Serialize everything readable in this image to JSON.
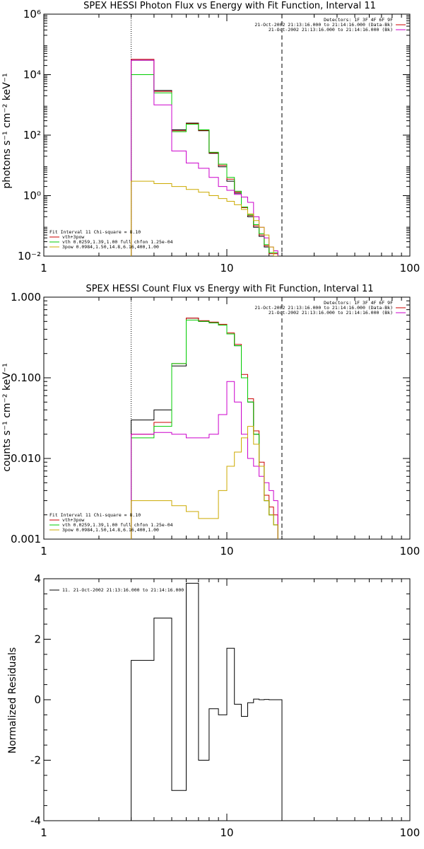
{
  "chart_data": [
    {
      "type": "line",
      "title": "SPEX HESSI Photon Flux vs Energy with Fit Function, Interval 11",
      "ylabel": "photons s⁻¹ cm⁻² keV⁻¹",
      "xlabel": "",
      "xscale": "log",
      "yscale": "log",
      "xlim": [
        1,
        100
      ],
      "ylim": [
        0.01,
        1000000
      ],
      "x_ticks": [
        1,
        10,
        100
      ],
      "x_tick_labels": [
        "1",
        "10",
        "100"
      ],
      "y_ticks": [
        0.01,
        1,
        100,
        10000,
        1000000
      ],
      "y_tick_labels": [
        "10⁻²",
        "10⁰",
        "10²",
        "10⁴",
        "10⁶"
      ],
      "vlines": [
        {
          "x": 3,
          "style": "dotted"
        },
        {
          "x": 20,
          "style": "dashed"
        }
      ],
      "legend_top_right": [
        {
          "text": "Detectors: 1F 3F 4F 6F 9F",
          "color": ""
        },
        {
          "text": "21-Oct-2002 21:13:16.000 to 21:14:16.000 (Data-Bk)",
          "color": "#cc0000"
        },
        {
          "text": "21-Oct-2002 21:13:16.000 to 21:14:16.000 (Bk)",
          "color": "#cc00cc"
        }
      ],
      "legend_bottom_left": [
        {
          "text": "Fit Interval 11    Chi-square = 8.10",
          "color": ""
        },
        {
          "text": "vth+3pow",
          "color": "#cc0000"
        },
        {
          "text": "vth 0.0259,1.39,1.00  full chfon 1.25e-04",
          "color": "#00cc00"
        },
        {
          "text": "3pow 0.0984,1.50,14.8,6.16,400,1.00",
          "color": "#ccaa00"
        }
      ],
      "edges": [
        3,
        4,
        5,
        6,
        7,
        8,
        9,
        10,
        11,
        12,
        13,
        14,
        15,
        16,
        17,
        18,
        19,
        20,
        21,
        22
      ],
      "series": [
        {
          "color": "#000000",
          "values": [
            30000,
            3000,
            150,
            250,
            140,
            25,
            9,
            3,
            1.2,
            0.35,
            0.2,
            0.09,
            0.045,
            0.02,
            0.01,
            0.01
          ]
        },
        {
          "color": "#cc0000",
          "values": [
            32000,
            2800,
            140,
            240,
            145,
            26,
            10,
            3.5,
            1.3,
            0.4,
            0.22,
            0.1,
            0.05,
            0.022,
            0.012,
            0.012
          ]
        },
        {
          "color": "#00cc00",
          "values": [
            10000,
            2500,
            130,
            230,
            150,
            27,
            11,
            4,
            1.4,
            0.42,
            0.23,
            0.11,
            0.055,
            0.024,
            0.013,
            0.013
          ]
        },
        {
          "color": "#cc00cc",
          "values": [
            30000,
            1000,
            30,
            12,
            8,
            4,
            2,
            1.5,
            1.1,
            0.9,
            0.6,
            0.2,
            0.09,
            0.04,
            0.02,
            0.015
          ]
        },
        {
          "color": "#ccaa00",
          "values": [
            3,
            2.5,
            2,
            1.6,
            1.3,
            1.0,
            0.8,
            0.65,
            0.5,
            0.35,
            0.25,
            0.15,
            0.09,
            0.05,
            0.02,
            0.01
          ]
        }
      ]
    },
    {
      "type": "line",
      "title": "SPEX HESSI Count Flux vs Energy with Fit Function, Interval 11",
      "ylabel": "counts s⁻¹ cm⁻² keV⁻¹",
      "xlabel": "",
      "xscale": "log",
      "yscale": "log",
      "xlim": [
        1,
        100
      ],
      "ylim": [
        0.001,
        1.0
      ],
      "x_ticks": [
        1,
        10,
        100
      ],
      "x_tick_labels": [
        "1",
        "10",
        "100"
      ],
      "y_ticks": [
        0.001,
        0.01,
        0.1,
        1.0
      ],
      "y_tick_labels": [
        "0.001",
        "0.010",
        "0.100",
        "1.000"
      ],
      "vlines": [
        {
          "x": 3,
          "style": "dotted"
        },
        {
          "x": 20,
          "style": "dashed"
        }
      ],
      "legend_top_right": [
        {
          "text": "Detectors: 1F 3F 4F 6F 9F",
          "color": ""
        },
        {
          "text": "21-Oct-2002 21:13:16.000 to 21:14:16.000 (Data-Bk)",
          "color": "#cc0000"
        },
        {
          "text": "21-Oct-2002 21:13:16.000 to 21:14:16.000 (Bk)",
          "color": "#cc00cc"
        }
      ],
      "legend_bottom_left": [
        {
          "text": "Fit Interval 11    Chi-square = 8.10",
          "color": ""
        },
        {
          "text": "vth+3pow",
          "color": "#cc0000"
        },
        {
          "text": "vth 0.0259,1.39,1.00  full chfon 1.25e-04",
          "color": "#00cc00"
        },
        {
          "text": "3pow 0.0984,1.50,14.8,6.16,400,1.00",
          "color": "#ccaa00"
        }
      ],
      "edges": [
        3,
        4,
        5,
        6,
        7,
        8,
        9,
        10,
        11,
        12,
        13,
        14,
        15,
        16,
        17,
        18,
        19,
        20,
        21,
        22
      ],
      "series": [
        {
          "color": "#000000",
          "values": [
            0.03,
            0.04,
            0.14,
            0.55,
            0.5,
            0.48,
            0.45,
            0.35,
            0.25,
            0.1,
            0.05,
            0.02,
            0.008,
            0.003,
            0.002,
            0.0015
          ]
        },
        {
          "color": "#cc0000",
          "values": [
            0.02,
            0.028,
            0.15,
            0.55,
            0.51,
            0.49,
            0.46,
            0.36,
            0.26,
            0.11,
            0.055,
            0.022,
            0.009,
            0.0035,
            0.0025,
            0.002
          ]
        },
        {
          "color": "#00cc00",
          "values": [
            0.018,
            0.025,
            0.15,
            0.52,
            0.5,
            0.48,
            0.45,
            0.35,
            0.25,
            0.1,
            0.05,
            0.02,
            0.008,
            0.003,
            0.002,
            0.0015
          ]
        },
        {
          "color": "#cc00cc",
          "values": [
            0.02,
            0.021,
            0.02,
            0.018,
            0.018,
            0.02,
            0.035,
            0.09,
            0.05,
            0.02,
            0.01,
            0.008,
            0.006,
            0.005,
            0.004,
            0.003
          ]
        },
        {
          "color": "#ccaa00",
          "values": [
            0.003,
            0.003,
            0.0026,
            0.0022,
            0.0018,
            0.0018,
            0.004,
            0.008,
            0.012,
            0.018,
            0.025,
            0.015,
            0.008,
            0.003,
            0.002,
            0.0015
          ]
        }
      ]
    },
    {
      "type": "line",
      "title": "",
      "ylabel": "Normalized Residuals",
      "xlabel": "",
      "xscale": "log",
      "yscale": "linear",
      "xlim": [
        1,
        100
      ],
      "ylim": [
        -4,
        4
      ],
      "x_ticks": [
        1,
        10,
        100
      ],
      "x_tick_labels": [
        "1",
        "10",
        "100"
      ],
      "y_ticks": [
        -4,
        -2,
        0,
        2,
        4
      ],
      "y_tick_labels": [
        "-4",
        "-2",
        "0",
        "2",
        "4"
      ],
      "legend": [
        {
          "text": "11. 21-Oct-2002 21:13:16.000 to 21:14:16.000",
          "color": "#000000"
        }
      ],
      "edges": [
        3,
        4,
        5,
        6,
        7,
        8,
        9,
        10,
        11,
        12,
        13,
        14,
        15,
        16,
        17,
        18,
        19,
        20
      ],
      "series": [
        {
          "color": "#000000",
          "values": [
            1.3,
            2.7,
            -3.0,
            3.85,
            -2.0,
            -0.3,
            -0.5,
            1.7,
            -0.15,
            -0.55,
            -0.1,
            0.02,
            0.0,
            0.01,
            0.0,
            0.0,
            0.0
          ]
        }
      ]
    }
  ]
}
